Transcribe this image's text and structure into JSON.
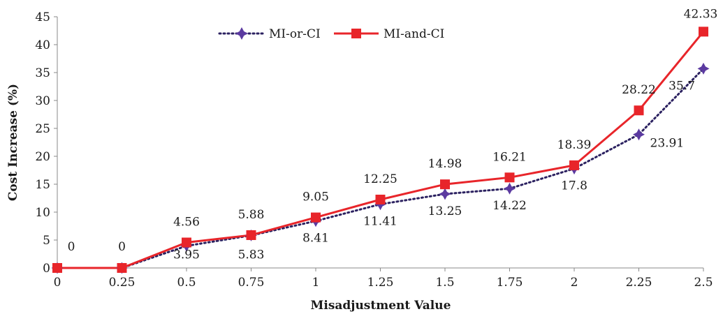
{
  "chart_data": {
    "type": "line",
    "xlabel": "Misadjustment Value",
    "ylabel": "Cost Increase (%)",
    "x": [
      "0",
      "0.25",
      "0.5",
      "0.75",
      "1",
      "1.25",
      "1.5",
      "1.75",
      "2",
      "2.25",
      "2.5"
    ],
    "ylim": [
      0,
      45
    ],
    "yticks": [
      "0",
      "5",
      "10",
      "15",
      "20",
      "25",
      "30",
      "35",
      "40",
      "45"
    ],
    "grid": false,
    "legend_position": "top-center",
    "series": [
      {
        "name": "MI-or-CI",
        "color": "#2b2160",
        "marker_color": "#5b3aa0",
        "line_style": "dotted",
        "marker": "star",
        "values": [
          0,
          0,
          3.95,
          5.83,
          8.41,
          11.41,
          13.25,
          14.22,
          17.8,
          23.91,
          35.7
        ],
        "labels": [
          "",
          "",
          "3.95",
          "5.83",
          "8.41",
          "11.41",
          "13.25",
          "14.22",
          "17.8",
          "23.91",
          "35.7"
        ]
      },
      {
        "name": "MI-and-CI",
        "color": "#e8252a",
        "line_style": "solid",
        "marker": "square",
        "values": [
          0,
          0,
          4.56,
          5.88,
          9.05,
          12.25,
          14.98,
          16.21,
          18.39,
          28.22,
          42.33
        ],
        "labels": [
          "0",
          "0",
          "4.56",
          "5.88",
          "9.05",
          "12.25",
          "14.98",
          "16.21",
          "18.39",
          "28.22",
          "42.33"
        ]
      }
    ]
  }
}
